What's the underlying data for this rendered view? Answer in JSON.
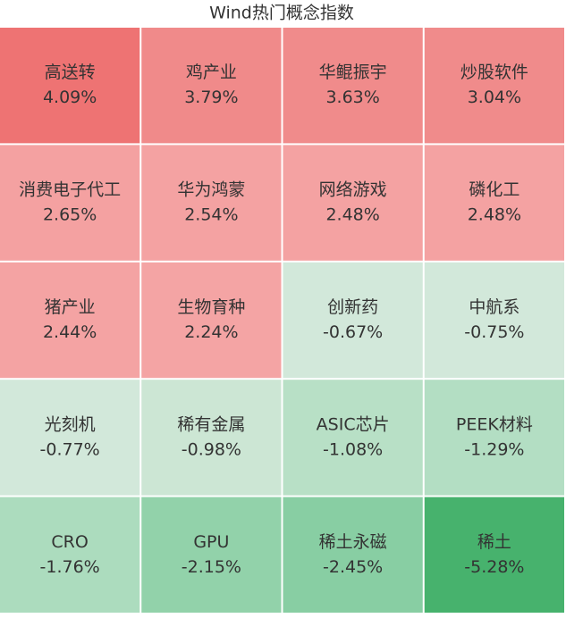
{
  "chart_data": {
    "type": "heatmap",
    "title": "Wind热门概念指数",
    "columns": 4,
    "categories": [
      "高送转",
      "鸡产业",
      "华鲲振宇",
      "炒股软件",
      "消费电子代工",
      "华为鸿蒙",
      "网络游戏",
      "磷化工",
      "猪产业",
      "生物育种",
      "创新药",
      "中航系",
      "光刻机",
      "稀有金属",
      "ASIC芯片",
      "PEEK材料",
      "CRO",
      "GPU",
      "稀土永磁",
      "稀土"
    ],
    "values": [
      4.09,
      3.79,
      3.63,
      3.04,
      2.65,
      2.54,
      2.48,
      2.48,
      2.44,
      2.24,
      -0.67,
      -0.75,
      -0.77,
      -0.98,
      -1.08,
      -1.29,
      -1.76,
      -2.15,
      -2.45,
      -5.28
    ],
    "value_labels": [
      "4.09%",
      "3.79%",
      "3.63%",
      "3.04%",
      "2.65%",
      "2.54%",
      "2.48%",
      "2.48%",
      "2.44%",
      "2.24%",
      "-0.67%",
      "-0.75%",
      "-0.77%",
      "-0.98%",
      "-1.08%",
      "-1.29%",
      "-1.76%",
      "-2.15%",
      "-2.45%",
      "-5.28%"
    ],
    "colors": [
      "#ee7373",
      "#f08a8a",
      "#f08b8b",
      "#f08b8b",
      "#f4a1a1",
      "#f4a2a2",
      "#f4a2a2",
      "#f4a2a2",
      "#f4a3a3",
      "#f4a4a4",
      "#d2e8da",
      "#d2e8da",
      "#d2e8da",
      "#cce6d4",
      "#b8e0c6",
      "#b3dec3",
      "#acdcbe",
      "#92d2aa",
      "#88cea3",
      "#47b26d"
    ]
  }
}
